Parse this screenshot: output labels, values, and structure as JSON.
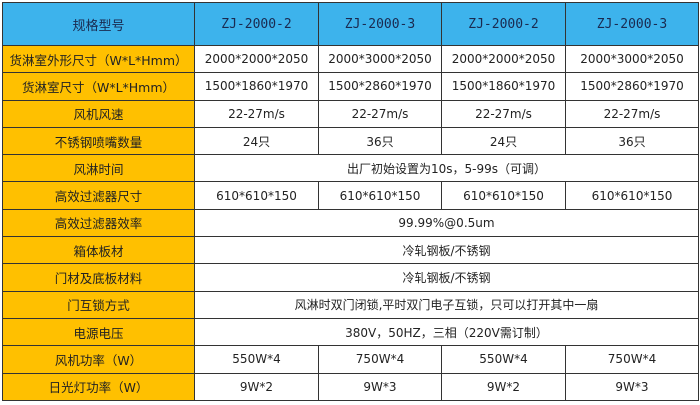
{
  "header": [
    "规格型号",
    "ZJ-2000-2",
    "ZJ-2000-3",
    "ZJ-2000-2",
    "ZJ-2000-3"
  ],
  "rows": [
    {
      "label": "货淋室外形尺寸（W*L*Hmm）",
      "cells": [
        "2000*2000*2050",
        "2000*3000*2050",
        "2000*2000*2050",
        "2000*3000*2050"
      ]
    },
    {
      "label": "货淋室尺寸（W*L*Hmm）",
      "cells": [
        "1500*1860*1970",
        "1500*2860*1970",
        "1500*1860*1970",
        "1500*2860*1970"
      ]
    },
    {
      "label": "风机风速",
      "cells": [
        "22-27m/s",
        "22-27m/s",
        "22-27m/s",
        "22-27m/s"
      ]
    },
    {
      "label": "不锈钢喷嘴数量",
      "cells": [
        "24只",
        "36只",
        "24只",
        "36只"
      ]
    },
    {
      "label": "风淋时间",
      "merged": "出厂初始设置为10s，5-99s（可调）"
    },
    {
      "label": "高效过滤器尺寸",
      "cells": [
        "610*610*150",
        "610*610*150",
        "610*610*150",
        "610*610*150"
      ]
    },
    {
      "label": "高效过滤器效率",
      "merged": "99.99%@0.5um"
    },
    {
      "label": "箱体板材",
      "merged": "冷轧钢板/不锈钢"
    },
    {
      "label": "门材及底板材料",
      "merged": "冷轧钢板/不锈钢"
    },
    {
      "label": "门互锁方式",
      "merged": "风淋时双门闭锁,平时双门电子互锁，只可以打开其中一扇"
    },
    {
      "label": "电源电压",
      "merged": "380V，50HZ，三相（220V需订制）"
    },
    {
      "label": "风机功率（W）",
      "cells": [
        "550W*4",
        "750W*4",
        "550W*4",
        "750W*4"
      ]
    },
    {
      "label": "日光灯功率（W）",
      "cells": [
        "9W*2",
        "9W*3",
        "9W*2",
        "9W*3"
      ]
    }
  ],
  "colors": {
    "header_bg": "#3db3ec",
    "label_bg": "#ffc000",
    "border": "#333333"
  }
}
